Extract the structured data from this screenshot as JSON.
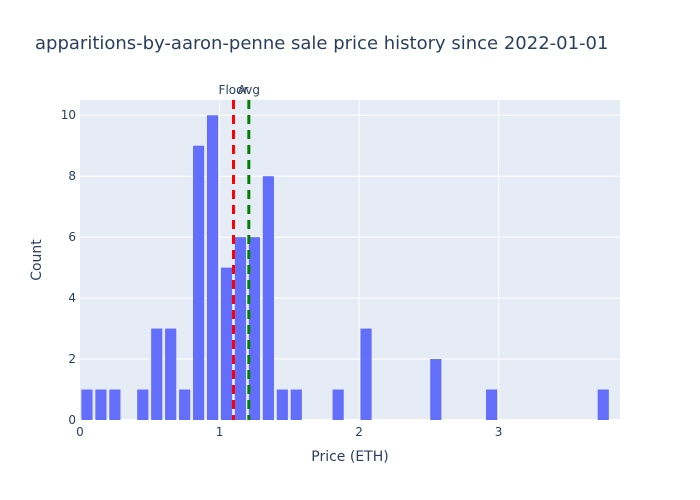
{
  "chart_data": {
    "type": "bar",
    "title": "apparitions-by-aaron-penne sale price history since 2022-01-01",
    "xlabel": "Price (ETH)",
    "ylabel": "Count",
    "xlim": [
      0,
      3.87
    ],
    "ylim": [
      0,
      10.5
    ],
    "xticks": [
      "0",
      "1",
      "2",
      "3"
    ],
    "yticks": [
      "0",
      "2",
      "4",
      "6",
      "8",
      "10"
    ],
    "bin_width": 0.1,
    "bins": [
      {
        "x": 0.05,
        "count": 1
      },
      {
        "x": 0.15,
        "count": 1
      },
      {
        "x": 0.25,
        "count": 1
      },
      {
        "x": 0.45,
        "count": 1
      },
      {
        "x": 0.55,
        "count": 3
      },
      {
        "x": 0.65,
        "count": 3
      },
      {
        "x": 0.75,
        "count": 1
      },
      {
        "x": 0.85,
        "count": 9
      },
      {
        "x": 0.95,
        "count": 10
      },
      {
        "x": 1.05,
        "count": 5
      },
      {
        "x": 1.15,
        "count": 6
      },
      {
        "x": 1.25,
        "count": 6
      },
      {
        "x": 1.35,
        "count": 8
      },
      {
        "x": 1.45,
        "count": 1
      },
      {
        "x": 1.55,
        "count": 1
      },
      {
        "x": 1.85,
        "count": 1
      },
      {
        "x": 2.05,
        "count": 3
      },
      {
        "x": 2.55,
        "count": 2
      },
      {
        "x": 2.95,
        "count": 1
      },
      {
        "x": 3.75,
        "count": 1
      }
    ],
    "bar_color": "#636efa",
    "plot_bg": "#e5ecf6",
    "grid": true,
    "reference_lines": [
      {
        "label": "Floor",
        "x": 1.1,
        "color": "#ff0000",
        "dash": "dash"
      },
      {
        "label": "Avg",
        "x": 1.21,
        "color": "#008000",
        "dash": "dash"
      }
    ]
  }
}
